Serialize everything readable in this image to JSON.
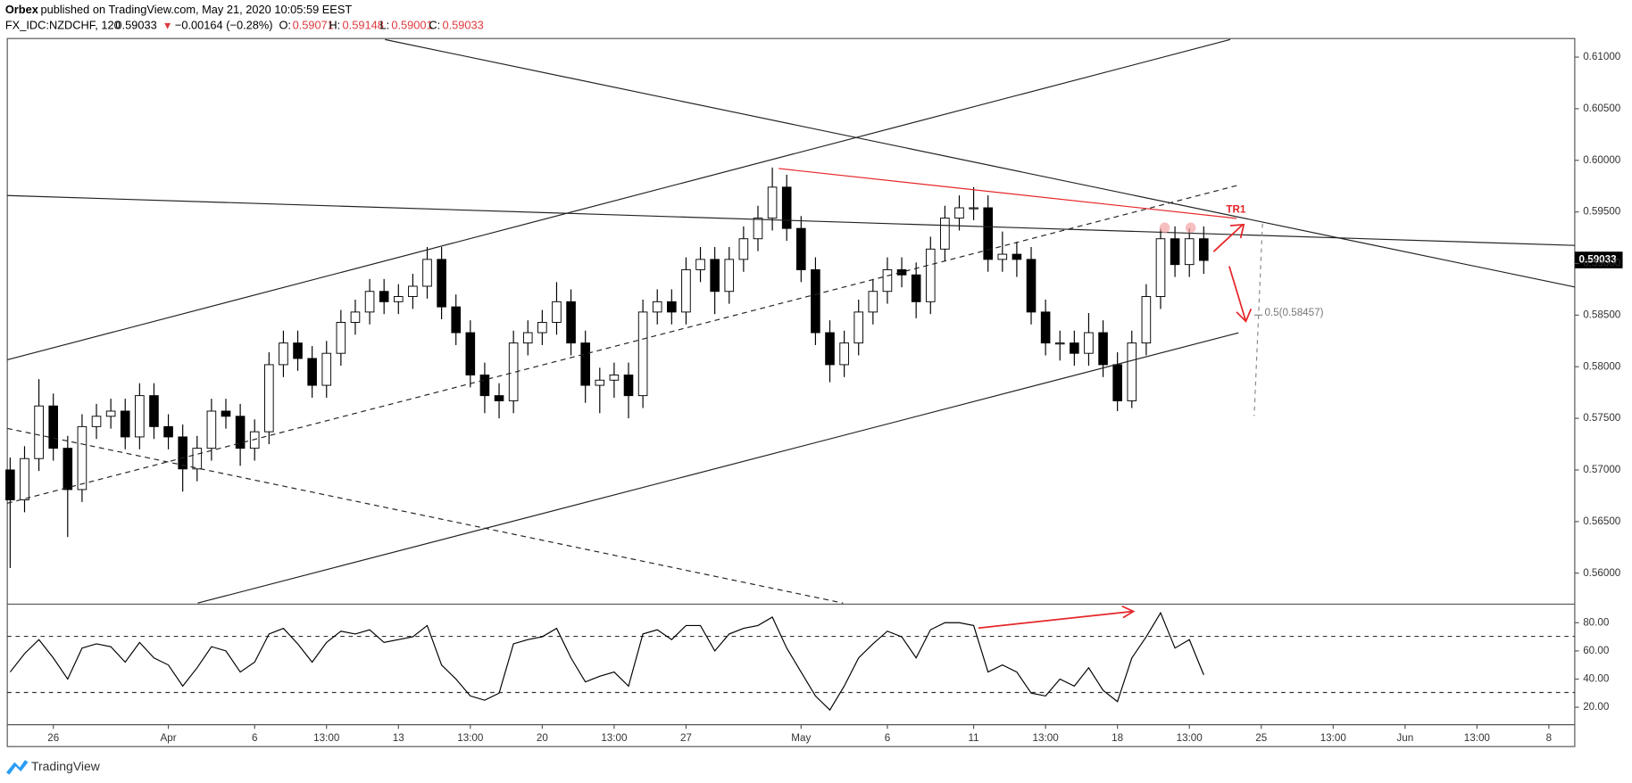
{
  "header": {
    "publisher": "Orbex",
    "published": "published on TradingView.com, May 21, 2020 10:05:59 EEST",
    "symbol": "FX_IDC:NZDCHF, 120",
    "last": "0.59033",
    "direction": "▼",
    "change": "−0.00164 (−0.28%)",
    "open_label": "O:",
    "open": "0.59071",
    "high_label": "H:",
    "high": "0.59148",
    "low_label": "L:",
    "low": "0.59001",
    "close_label": "C:",
    "close": "0.59033"
  },
  "annotations": {
    "tr1": "TR1",
    "fib": "0.5(0.58457)",
    "last_price": "0.59033"
  },
  "footer": {
    "brand": "TradingView"
  },
  "chart_data": [
    {
      "type": "candlestick",
      "x": [
        -1.5,
        -1,
        -0.5,
        0,
        0.5,
        1,
        1.5,
        2,
        2.5,
        3,
        3.5,
        4,
        4.5,
        5,
        5.5,
        6,
        6.5,
        7,
        7.5,
        8,
        8.5,
        9,
        9.5,
        10,
        10.5,
        11,
        11.5,
        12,
        12.5,
        13,
        13.5,
        14,
        14.5,
        15,
        15.5,
        16,
        16.5,
        17,
        17.5,
        18,
        18.5,
        19,
        19.5,
        20,
        20.5,
        21,
        21.5,
        22,
        22.5,
        23,
        23.5,
        24,
        24.5,
        25,
        25.5,
        26,
        26.5,
        27,
        27.5,
        28,
        28.5,
        29,
        29.5,
        30,
        30.5,
        31,
        31.5,
        32,
        32.5,
        33,
        33.5,
        34,
        34.5,
        35,
        35.5,
        36,
        36.5,
        37,
        37.5,
        38,
        38.5,
        39,
        39.5,
        40
      ],
      "open": [
        0.57,
        0.5671,
        0.5711,
        0.5762,
        0.5721,
        0.5681,
        0.5742,
        0.5752,
        0.5757,
        0.5732,
        0.5772,
        0.5742,
        0.5732,
        0.5701,
        0.5721,
        0.5757,
        0.5752,
        0.5721,
        0.5737,
        0.5802,
        0.5823,
        0.5808,
        0.5782,
        0.5813,
        0.5843,
        0.5853,
        0.5873,
        0.5863,
        0.5868,
        0.5878,
        0.5904,
        0.5858,
        0.5833,
        0.5792,
        0.5772,
        0.5767,
        0.5823,
        0.5833,
        0.5843,
        0.5863,
        0.5823,
        0.5782,
        0.5787,
        0.5792,
        0.5772,
        0.5853,
        0.5863,
        0.5853,
        0.5894,
        0.5904,
        0.5873,
        0.5904,
        0.5924,
        0.5944,
        0.5974,
        0.5934,
        0.5894,
        0.5833,
        0.5802,
        0.5823,
        0.5853,
        0.5873,
        0.5894,
        0.5889,
        0.5863,
        0.5914,
        0.5944,
        0.5954,
        0.5954,
        0.5904,
        0.5909,
        0.5904,
        0.5853,
        0.5823,
        0.5823,
        0.5813,
        0.5833,
        0.5802,
        0.5767,
        0.5823,
        0.5868,
        0.5924,
        0.5899,
        0.5924
      ],
      "high": [
        0.5712,
        0.5723,
        0.5788,
        0.5774,
        0.5733,
        0.5754,
        0.5764,
        0.5769,
        0.5769,
        0.5784,
        0.5784,
        0.5754,
        0.5744,
        0.5733,
        0.5769,
        0.5769,
        0.5764,
        0.5749,
        0.5814,
        0.5835,
        0.5835,
        0.582,
        0.5825,
        0.5855,
        0.5865,
        0.5885,
        0.5885,
        0.588,
        0.589,
        0.5916,
        0.5916,
        0.587,
        0.5845,
        0.5804,
        0.5784,
        0.5835,
        0.5845,
        0.5855,
        0.5882,
        0.5875,
        0.5835,
        0.5799,
        0.5804,
        0.5804,
        0.5865,
        0.5875,
        0.5875,
        0.5906,
        0.5916,
        0.5916,
        0.5916,
        0.5936,
        0.5956,
        0.5993,
        0.5986,
        0.5946,
        0.5906,
        0.5845,
        0.5835,
        0.5865,
        0.5885,
        0.5906,
        0.5906,
        0.5901,
        0.5926,
        0.5956,
        0.5966,
        0.5974,
        0.5966,
        0.5931,
        0.5921,
        0.5916,
        0.5865,
        0.5835,
        0.5835,
        0.5852,
        0.5845,
        0.5814,
        0.5835,
        0.588,
        0.5934,
        0.5936,
        0.5934,
        0.5936
      ],
      "low": [
        0.5605,
        0.5659,
        0.5699,
        0.5709,
        0.5635,
        0.5669,
        0.573,
        0.574,
        0.572,
        0.572,
        0.573,
        0.572,
        0.5679,
        0.5689,
        0.5709,
        0.574,
        0.5704,
        0.5709,
        0.5725,
        0.579,
        0.5796,
        0.577,
        0.577,
        0.5801,
        0.5831,
        0.5841,
        0.5851,
        0.5851,
        0.5856,
        0.5866,
        0.5846,
        0.5821,
        0.578,
        0.5755,
        0.575,
        0.5755,
        0.5811,
        0.5821,
        0.5831,
        0.5811,
        0.5765,
        0.5755,
        0.577,
        0.575,
        0.576,
        0.5841,
        0.5841,
        0.5841,
        0.5882,
        0.5851,
        0.5861,
        0.5892,
        0.5912,
        0.5932,
        0.5922,
        0.5882,
        0.5821,
        0.5785,
        0.579,
        0.5811,
        0.5841,
        0.5861,
        0.5877,
        0.5847,
        0.5851,
        0.5902,
        0.5932,
        0.5942,
        0.5892,
        0.5892,
        0.5887,
        0.5841,
        0.5811,
        0.5806,
        0.5801,
        0.5801,
        0.579,
        0.5757,
        0.576,
        0.5811,
        0.5856,
        0.5887,
        0.5887,
        0.589
      ],
      "close": [
        0.5671,
        0.5711,
        0.5762,
        0.5721,
        0.5681,
        0.5742,
        0.5752,
        0.5757,
        0.5732,
        0.5772,
        0.5742,
        0.5732,
        0.5701,
        0.5721,
        0.5757,
        0.5752,
        0.5721,
        0.5737,
        0.5802,
        0.5823,
        0.5808,
        0.5782,
        0.5813,
        0.5843,
        0.5853,
        0.5873,
        0.5863,
        0.5868,
        0.5878,
        0.5904,
        0.5858,
        0.5833,
        0.5792,
        0.5772,
        0.5767,
        0.5823,
        0.5833,
        0.5843,
        0.5863,
        0.5823,
        0.5782,
        0.5787,
        0.5792,
        0.5772,
        0.5853,
        0.5863,
        0.5853,
        0.5894,
        0.5904,
        0.5873,
        0.5904,
        0.5924,
        0.5944,
        0.5974,
        0.5934,
        0.5894,
        0.5833,
        0.5802,
        0.5823,
        0.5853,
        0.5873,
        0.5894,
        0.5889,
        0.5863,
        0.5914,
        0.5944,
        0.5954,
        0.5954,
        0.5904,
        0.5909,
        0.5904,
        0.5853,
        0.5823,
        0.5823,
        0.5813,
        0.5833,
        0.5802,
        0.5767,
        0.5823,
        0.5868,
        0.5924,
        0.5899,
        0.5924,
        0.5903
      ],
      "xlim": [
        -1.6,
        52.9
      ],
      "ylim": [
        0.557,
        0.6118
      ],
      "yticks": [
        {
          "value": 0.56,
          "label": "0.56000"
        },
        {
          "value": 0.565,
          "label": "0.56500"
        },
        {
          "value": 0.57,
          "label": "0.57000"
        },
        {
          "value": 0.575,
          "label": "0.57500"
        },
        {
          "value": 0.58,
          "label": "0.58000"
        },
        {
          "value": 0.585,
          "label": "0.58500"
        },
        {
          "value": 0.59,
          "label": "0.59000"
        },
        {
          "value": 0.595,
          "label": "0.59500"
        },
        {
          "value": 0.6,
          "label": "0.60000"
        },
        {
          "value": 0.605,
          "label": "0.60500"
        },
        {
          "value": 0.61,
          "label": "0.61000"
        }
      ],
      "up_color": "#ffffff",
      "down_color": "#000000"
    },
    {
      "type": "line",
      "x": [
        -1.5,
        -1,
        -0.5,
        0,
        0.5,
        1,
        1.5,
        2,
        2.5,
        3,
        3.5,
        4,
        4.5,
        5,
        5.5,
        6,
        6.5,
        7,
        7.5,
        8,
        8.5,
        9,
        9.5,
        10,
        10.5,
        11,
        11.5,
        12,
        12.5,
        13,
        13.5,
        14,
        14.5,
        15,
        15.5,
        16,
        16.5,
        17,
        17.5,
        18,
        18.5,
        19,
        19.5,
        20,
        20.5,
        21,
        21.5,
        22,
        22.5,
        23,
        23.5,
        24,
        24.5,
        25,
        25.5,
        26,
        26.5,
        27,
        27.5,
        28,
        28.5,
        29,
        29.5,
        30,
        30.5,
        31,
        31.5,
        32,
        32.5,
        33,
        33.5,
        34,
        34.5,
        35,
        35.5,
        36,
        36.5,
        37,
        37.5,
        38,
        38.5,
        39,
        39.5,
        40
      ],
      "values": [
        45,
        58,
        68,
        55,
        40,
        62,
        65,
        63,
        52,
        66,
        55,
        50,
        35,
        48,
        63,
        60,
        45,
        52,
        72,
        76,
        65,
        52,
        66,
        74,
        72,
        75,
        66,
        68,
        70,
        78,
        50,
        40,
        28,
        25,
        30,
        65,
        68,
        70,
        76,
        55,
        38,
        42,
        45,
        35,
        72,
        75,
        68,
        78,
        78,
        60,
        72,
        76,
        78,
        84,
        62,
        45,
        28,
        18,
        35,
        55,
        65,
        74,
        70,
        55,
        75,
        80,
        80,
        78,
        45,
        50,
        45,
        30,
        28,
        40,
        35,
        48,
        32,
        24,
        55,
        70,
        87,
        62,
        68,
        43
      ],
      "color": "#000000",
      "xlim": [
        -1.6,
        52.9
      ],
      "ylim": [
        7.6,
        93.2
      ],
      "yticks": [
        {
          "value": 20,
          "label": "20.00"
        },
        {
          "value": 40,
          "label": "40.00"
        },
        {
          "value": 60,
          "label": "60.00"
        },
        {
          "value": 80,
          "label": "80.00"
        }
      ],
      "xticks": [
        {
          "value": 0,
          "label": "26"
        },
        {
          "value": 4,
          "label": "Apr"
        },
        {
          "value": 7,
          "label": "6"
        },
        {
          "value": 9.5,
          "label": "13:00"
        },
        {
          "value": 12,
          "label": "13"
        },
        {
          "value": 14.5,
          "label": "13:00"
        },
        {
          "value": 17,
          "label": "20"
        },
        {
          "value": 19.5,
          "label": "13:00"
        },
        {
          "value": 22,
          "label": "27"
        },
        {
          "value": 26,
          "label": "May"
        },
        {
          "value": 29,
          "label": "6"
        },
        {
          "value": 32,
          "label": "11"
        },
        {
          "value": 34.5,
          "label": "13:00"
        },
        {
          "value": 37,
          "label": "18"
        },
        {
          "value": 39.5,
          "label": "13:00"
        },
        {
          "value": 42,
          "label": "25"
        },
        {
          "value": 44.5,
          "label": "13:00"
        },
        {
          "value": 47,
          "label": "Jun"
        },
        {
          "value": 49.5,
          "label": "13:00"
        },
        {
          "value": 52,
          "label": "8"
        }
      ]
    }
  ]
}
